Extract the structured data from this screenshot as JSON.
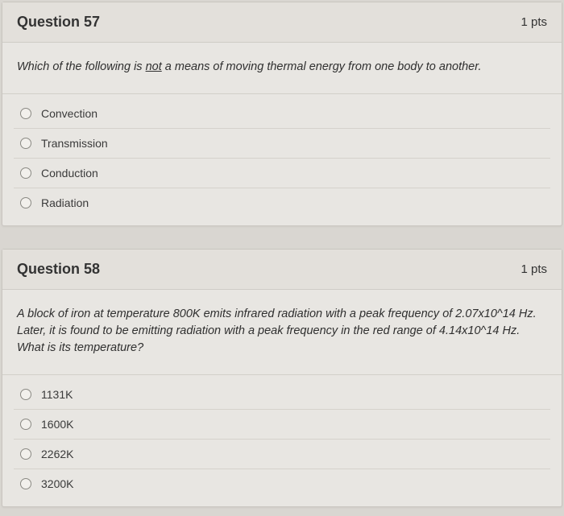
{
  "questions": [
    {
      "number": "Question 57",
      "points": "1 pts",
      "prompt_pre": "Which of the following is ",
      "prompt_u": "not",
      "prompt_post": " a means of moving thermal energy from one body to another.",
      "options": [
        "Convection",
        "Transmission",
        "Conduction",
        "Radiation"
      ]
    },
    {
      "number": "Question 58",
      "points": "1 pts",
      "prompt_full": "A block of iron at temperature 800K emits infrared radiation with a peak frequency of 2.07x10^14 Hz. Later, it is found to be emitting radiation with a peak frequency in the red range of 4.14x10^14 Hz. What is its temperature?",
      "options": [
        "1131K",
        "1600K",
        "2262K",
        "3200K"
      ]
    }
  ],
  "colors": {
    "page_bg": "#d9d6d1",
    "card_bg": "#e8e6e2",
    "header_bg": "#e3e0db",
    "border": "#c9c6c0",
    "divider": "#d5d2cc",
    "text": "#2a2a2a",
    "radio_border": "#8a8983"
  },
  "typography": {
    "title_fontsize": 18,
    "title_weight": 700,
    "prompt_fontsize": 14.5,
    "prompt_style": "italic",
    "option_fontsize": 14,
    "points_fontsize": 15
  }
}
